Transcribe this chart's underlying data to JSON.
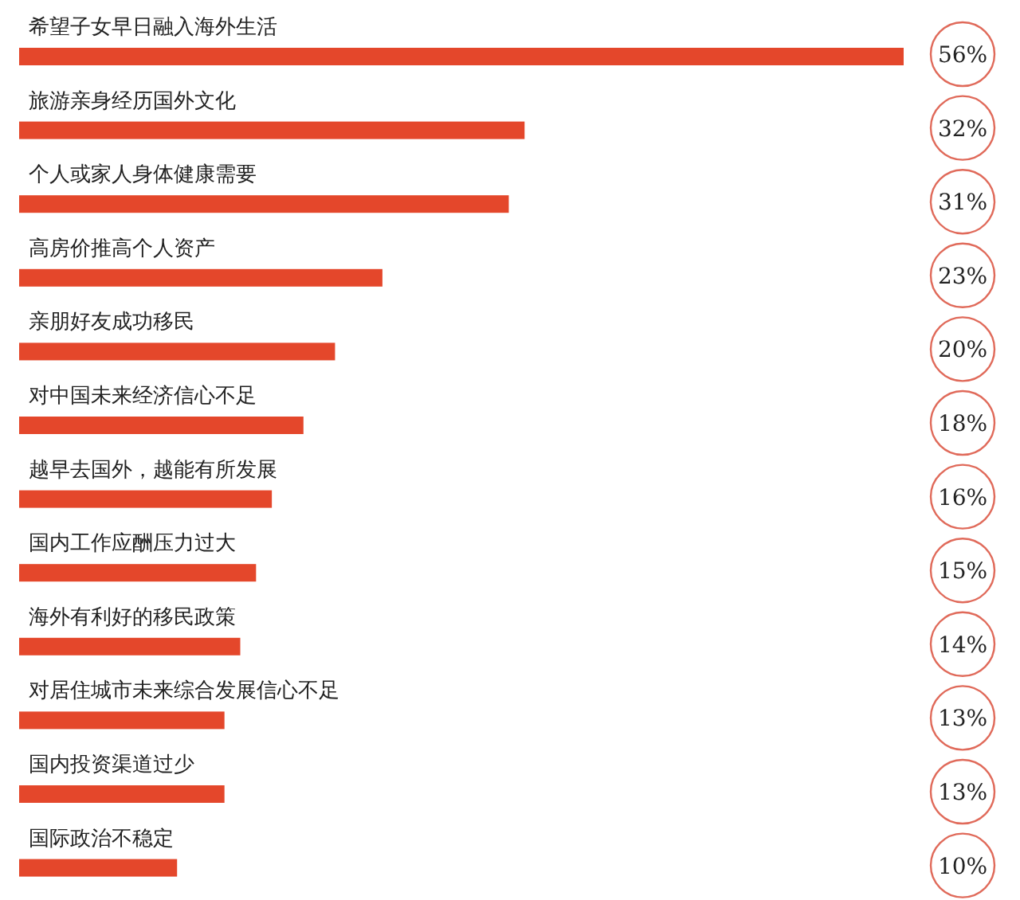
{
  "chart_data": {
    "type": "bar",
    "orientation": "horizontal",
    "color": "#e4472b",
    "categories": [
      "希望子女早日融入海外生活",
      "旅游亲身经历国外文化",
      "个人或家人身体健康需要",
      "高房价推高个人资产",
      "亲朋好友成功移民",
      "对中国未来经济信心不足",
      "越早去国外，越能有所发展",
      "国内工作应酬压力过大",
      "海外有利好的移民政策",
      "对居住城市未来综合发展信心不足",
      "国内投资渠道过少",
      "国际政治不稳定"
    ],
    "values": [
      56,
      32,
      31,
      23,
      20,
      18,
      16,
      15,
      14,
      13,
      13,
      10
    ],
    "value_labels": [
      "56%",
      "32%",
      "31%",
      "23%",
      "20%",
      "18%",
      "16%",
      "15%",
      "14%",
      "13%",
      "13%",
      "10%"
    ]
  }
}
